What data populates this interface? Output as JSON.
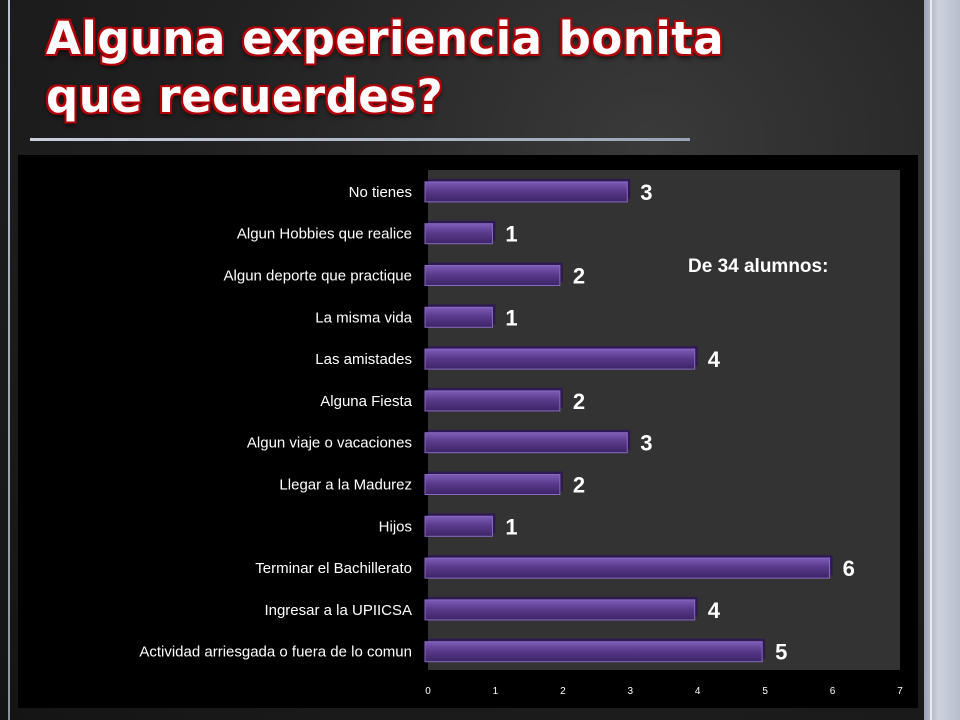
{
  "slide": {
    "title_line1": "Alguna experiencia bonita",
    "title_line2": "que recuerdes?",
    "annotation": "De 34 alumnos:"
  },
  "colors": {
    "bar_fill": "#5a3a8c",
    "bar_top": "#8a6ac0",
    "bar_edge": "#2e1a52"
  },
  "chart_data": {
    "type": "bar",
    "orientation": "horizontal",
    "categories": [
      "No tienes",
      "Algun Hobbies que realice",
      "Algun deporte que practique",
      "La misma vida",
      "Las amistades",
      "Alguna Fiesta",
      "Algun viaje o vacaciones",
      "Llegar a la Madurez",
      "Hijos",
      "Terminar el Bachillerato",
      "Ingresar a la UPIICSA",
      "Actividad arriesgada o fuera de lo comun"
    ],
    "values": [
      3,
      1,
      2,
      1,
      4,
      2,
      3,
      2,
      1,
      6,
      4,
      5
    ],
    "xlim": [
      0,
      7
    ],
    "xticks": [
      "0",
      "1",
      "2",
      "3",
      "4",
      "5",
      "6",
      "7"
    ],
    "title": "",
    "xlabel": "",
    "ylabel": "",
    "grid": false,
    "legend": "none",
    "data_labels": true
  }
}
